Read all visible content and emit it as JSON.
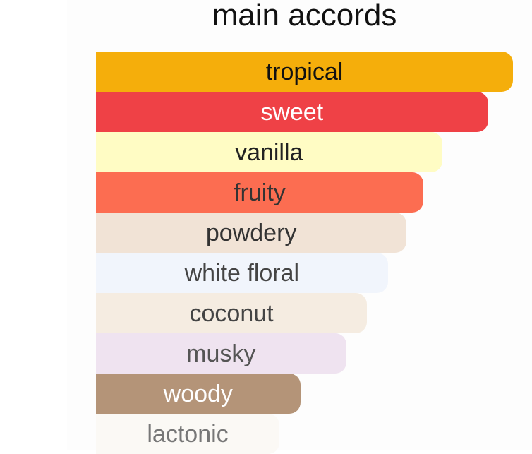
{
  "chart_data": {
    "type": "bar",
    "orientation": "horizontal",
    "title": "main accords",
    "categories": [
      "tropical",
      "sweet",
      "vanilla",
      "fruity",
      "powdery",
      "white floral",
      "coconut",
      "musky",
      "woody",
      "lactonic"
    ],
    "values": [
      100,
      94,
      83,
      78.5,
      74.5,
      70,
      65,
      60,
      49,
      44
    ],
    "xlim": [
      0,
      100
    ],
    "colors": [
      "#f5ae0b",
      "#ef4146",
      "#fffcc4",
      "#fc6d51",
      "#f1e3d6",
      "#f1f5fc",
      "#f5ece1",
      "#efe3f0",
      "#b49478",
      "#fbf9f5"
    ],
    "text_colors": [
      "#111111",
      "#ffffff",
      "#222222",
      "#333333",
      "#333333",
      "#444444",
      "#444444",
      "#555555",
      "#ffffff",
      "#777777"
    ],
    "grid": false,
    "legend": "none"
  }
}
